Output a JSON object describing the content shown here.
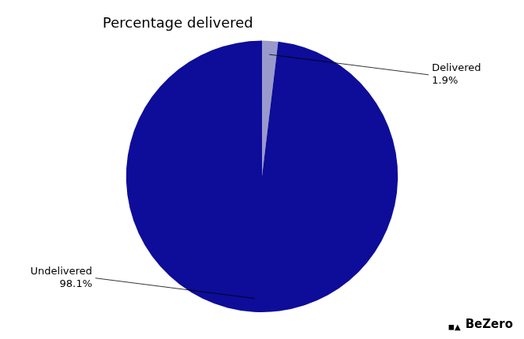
{
  "chart_data": {
    "type": "pie",
    "title": "Percentage delivered",
    "categories": [
      "Delivered",
      "Undelivered"
    ],
    "values": [
      1.9,
      98.1
    ],
    "value_labels": [
      "1.9%",
      "98.1%"
    ],
    "data_labels": true,
    "colors": [
      "#9999cc",
      "#0d0d99"
    ],
    "annotations": [
      "◼▲",
      "BeZero"
    ]
  }
}
